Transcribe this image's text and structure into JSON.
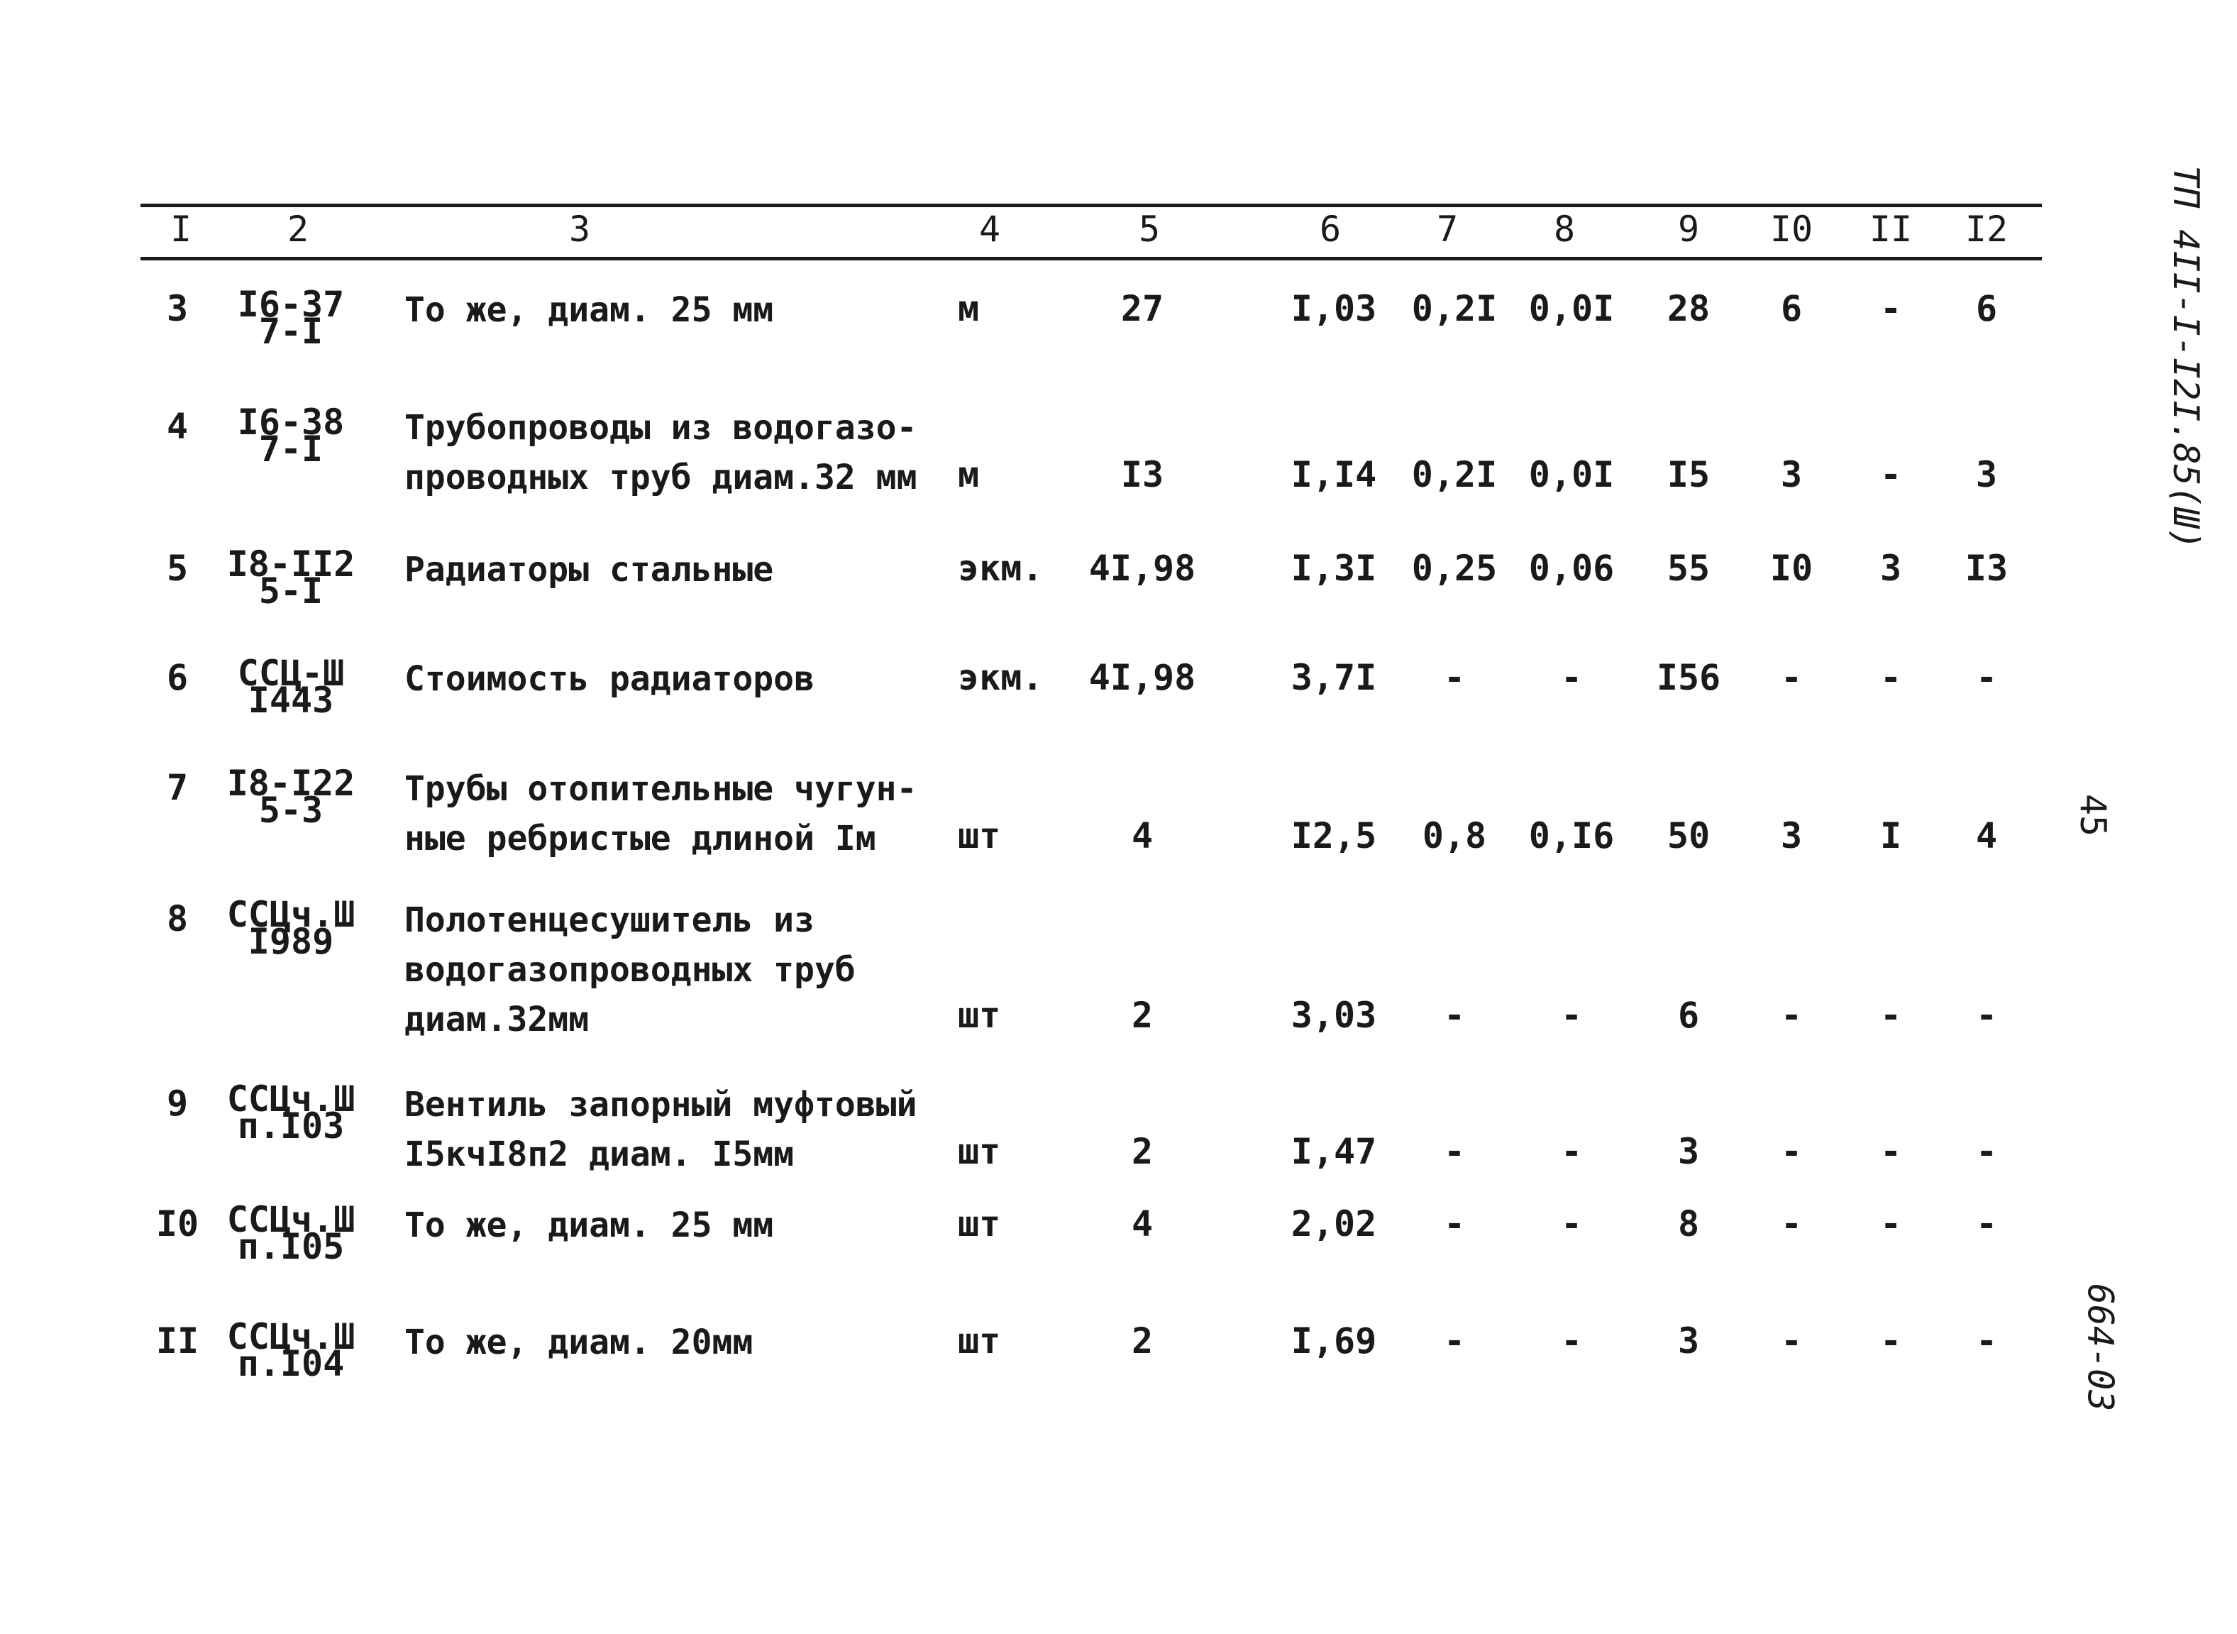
{
  "header": [
    "I",
    "2",
    "3",
    "4",
    "5",
    "6",
    "7",
    "8",
    "9",
    "I0",
    "II",
    "I2"
  ],
  "rows": [
    {
      "n": "3",
      "code": [
        "I6-37",
        "7-I"
      ],
      "desc": [
        "То же, диам. 25 мм"
      ],
      "unit": "м",
      "c5": "27",
      "c6": "I,03",
      "c7": "0,2I",
      "c8": "0,0I",
      "c9": "28",
      "c10": "6",
      "c11": "-",
      "c12": "6"
    },
    {
      "n": "4",
      "code": [
        "I6-38",
        "7-I"
      ],
      "desc": [
        "Трубопроводы из водогазо-",
        "проводных труб диам.32 мм"
      ],
      "unit": "м",
      "c5": "I3",
      "c6": "I,I4",
      "c7": "0,2I",
      "c8": "0,0I",
      "c9": "I5",
      "c10": "3",
      "c11": "-",
      "c12": "3"
    },
    {
      "n": "5",
      "code": [
        "I8-II2",
        "5-I"
      ],
      "desc": [
        "Радиаторы стальные"
      ],
      "unit": "экм.",
      "c5": "4I,98",
      "c6": "I,3I",
      "c7": "0,25",
      "c8": "0,06",
      "c9": "55",
      "c10": "I0",
      "c11": "3",
      "c12": "I3"
    },
    {
      "n": "6",
      "code": [
        "ССЦ-Ш",
        "I443"
      ],
      "desc": [
        "Стоимость радиаторов"
      ],
      "unit": "экм.",
      "c5": "4I,98",
      "c6": "3,7I",
      "c7": "-",
      "c8": "-",
      "c9": "I56",
      "c10": "-",
      "c11": "-",
      "c12": "-"
    },
    {
      "n": "7",
      "code": [
        "I8-I22",
        "5-3"
      ],
      "desc": [
        "Трубы отопительные чугун-",
        "ные ребристые длиной Iм"
      ],
      "unit": "шт",
      "c5": "4",
      "c6": "I2,5",
      "c7": "0,8",
      "c8": "0,I6",
      "c9": "50",
      "c10": "3",
      "c11": "I",
      "c12": "4"
    },
    {
      "n": "8",
      "code": [
        "ССЦч.Ш",
        "I989"
      ],
      "desc": [
        "Полотенцесушитель из",
        "водогазопроводных труб",
        "диам.32мм"
      ],
      "unit": "шт",
      "c5": "2",
      "c6": "3,03",
      "c7": "-",
      "c8": "-",
      "c9": "6",
      "c10": "-",
      "c11": "-",
      "c12": "-"
    },
    {
      "n": "9",
      "code": [
        "ССЦч.Ш",
        "п.I03"
      ],
      "desc": [
        "Вентиль запорный муфтовый",
        "I5кчI8п2 диам. I5мм"
      ],
      "unit": "шт",
      "c5": "2",
      "c6": "I,47",
      "c7": "-",
      "c8": "-",
      "c9": "3",
      "c10": "-",
      "c11": "-",
      "c12": "-"
    },
    {
      "n": "I0",
      "code": [
        "ССЦч.Ш",
        "п.I05"
      ],
      "desc": [
        "То же, диам. 25 мм"
      ],
      "unit": "шт",
      "c5": "4",
      "c6": "2,02",
      "c7": "-",
      "c8": "-",
      "c9": "8",
      "c10": "-",
      "c11": "-",
      "c12": "-"
    },
    {
      "n": "II",
      "code": [
        "ССЦч.Ш",
        "п.I04"
      ],
      "desc": [
        "То же, диам. 20мм"
      ],
      "unit": "шт",
      "c5": "2",
      "c6": "I,69",
      "c7": "-",
      "c8": "-",
      "c9": "3",
      "c10": "-",
      "c11": "-",
      "c12": "-"
    }
  ],
  "margin": {
    "project_code": "ТП 4II-I-I2I.85(Ш)",
    "sheet_number": "45",
    "album_code": "664-03"
  }
}
